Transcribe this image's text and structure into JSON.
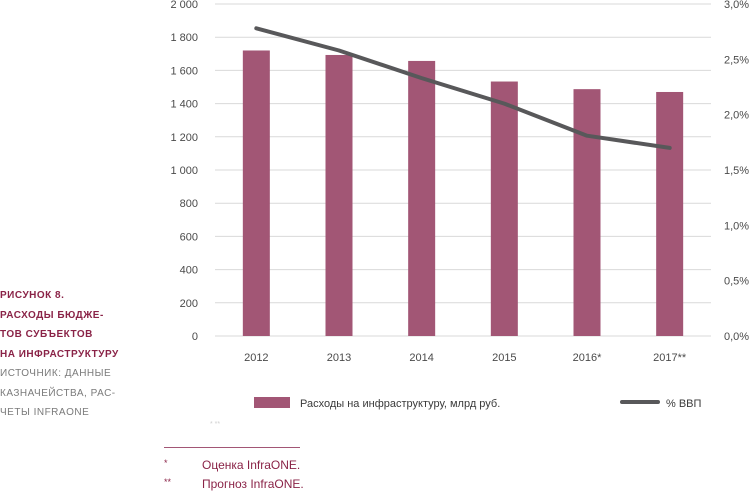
{
  "chart_data": {
    "type": "bar",
    "categories": [
      "2012",
      "2013",
      "2014",
      "2015",
      "2016*",
      "2017**"
    ],
    "series": [
      {
        "name": "Расходы на инфраструктуру, млрд руб.",
        "type": "bar",
        "axis": "left",
        "color": "#a25675",
        "values": [
          1720,
          1693,
          1657,
          1533,
          1487,
          1470
        ]
      },
      {
        "name": "% ВВП",
        "type": "line",
        "axis": "right",
        "color": "#58585a",
        "values": [
          2.78,
          2.58,
          2.33,
          2.1,
          1.81,
          1.7
        ]
      }
    ],
    "ylim": [
      0,
      2000
    ],
    "y2lim": [
      0,
      3.0
    ],
    "y_ticks": [
      "0",
      "200",
      "400",
      "600",
      "800",
      "1 000",
      "1 200",
      "1 400",
      "1 600",
      "1 800",
      "2 000"
    ],
    "y2_ticks": [
      "0,0%",
      "0,5%",
      "1,0%",
      "1,5%",
      "2,0%",
      "2,5%",
      "3,0%"
    ],
    "legend_position": "bottom"
  },
  "caption": {
    "title_lines": [
      "РИСУНОК 8.",
      "РАСХОДЫ БЮДЖЕ-",
      "ТОВ СУБЪЕКТОВ",
      "НА ИНФРАСТРУКТУРУ"
    ],
    "source_lines": [
      "ИСТОЧНИК: ДАННЫЕ",
      "КАЗНАЧЕЙСТВА, РАС-",
      "ЧЕТЫ INFRAONE"
    ]
  },
  "footnotes": [
    {
      "mark": "*",
      "text": "Оценка InfraONE."
    },
    {
      "mark": "**",
      "text": "Прогноз InfraONE."
    }
  ]
}
